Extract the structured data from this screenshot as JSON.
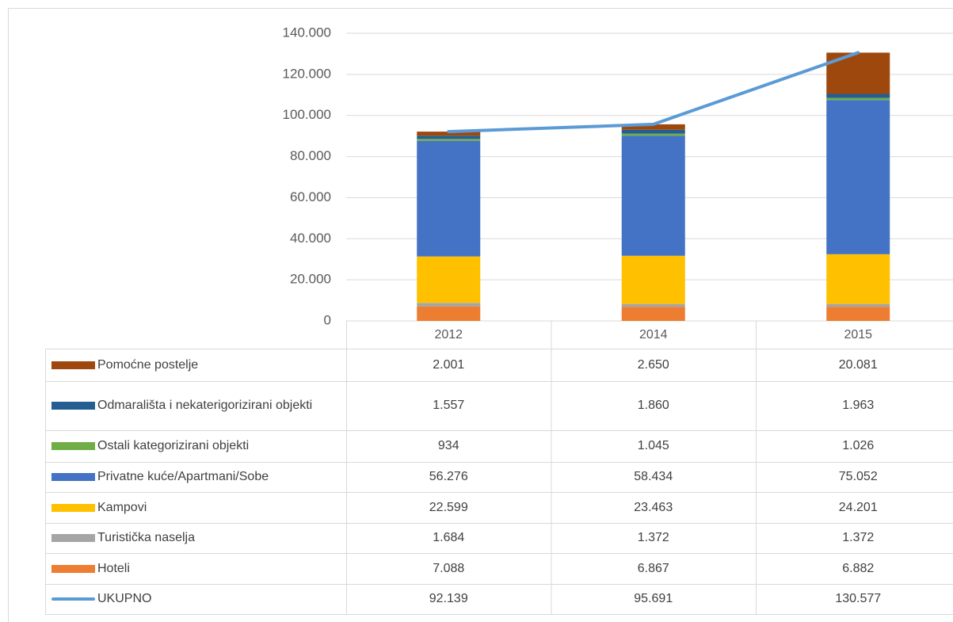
{
  "chart_data": {
    "type": "bar",
    "stacked": true,
    "categories": [
      "2012",
      "2014",
      "2015"
    ],
    "ylim": [
      0,
      140000
    ],
    "yticks": [
      0,
      {
        "value": 20000,
        "label": "20.000"
      },
      {
        "value": 40000,
        "label": "40.000"
      },
      {
        "value": 60000,
        "label": "60.000"
      },
      {
        "value": 80000,
        "label": "80.000"
      },
      {
        "value": 100000,
        "label": "100.000"
      },
      {
        "value": 120000,
        "label": "120.000"
      },
      {
        "value": 140000,
        "label": "140.000"
      }
    ],
    "grid": true,
    "data_table": true,
    "series": [
      {
        "name": "Pomoćne postelje",
        "color": "#9e480e",
        "values": [
          2001,
          2650,
          20081
        ],
        "value_labels": [
          "2.001",
          "2.650",
          "20.081"
        ]
      },
      {
        "name": "Odmarališta i nekaterigorizirani objekti",
        "color": "#255e91",
        "values": [
          1557,
          1860,
          1963
        ],
        "value_labels": [
          "1.557",
          "1.860",
          "1.963"
        ]
      },
      {
        "name": "Ostali kategorizirani objekti",
        "color": "#70ad47",
        "values": [
          934,
          1045,
          1026
        ],
        "value_labels": [
          "934",
          "1.045",
          "1.026"
        ]
      },
      {
        "name": "Privatne kuće/Apartmani/Sobe",
        "color": "#4472c4",
        "values": [
          56276,
          58434,
          75052
        ],
        "value_labels": [
          "56.276",
          "58.434",
          "75.052"
        ]
      },
      {
        "name": "Kampovi",
        "color": "#ffc000",
        "values": [
          22599,
          23463,
          24201
        ],
        "value_labels": [
          "22.599",
          "23.463",
          "24.201"
        ]
      },
      {
        "name": "Turistička naselja",
        "color": "#a5a5a5",
        "values": [
          1684,
          1372,
          1372
        ],
        "value_labels": [
          "1.684",
          "1.372",
          "1.372"
        ]
      },
      {
        "name": "Hoteli",
        "color": "#ed7d31",
        "values": [
          7088,
          6867,
          6882
        ],
        "value_labels": [
          "7.088",
          "6.867",
          "6.882"
        ]
      },
      {
        "name": "UKUPNO",
        "type": "line",
        "color": "#5b9bd5",
        "values": [
          92139,
          95691,
          130577
        ],
        "value_labels": [
          "92.139",
          "95.691",
          "130.577"
        ]
      }
    ]
  }
}
